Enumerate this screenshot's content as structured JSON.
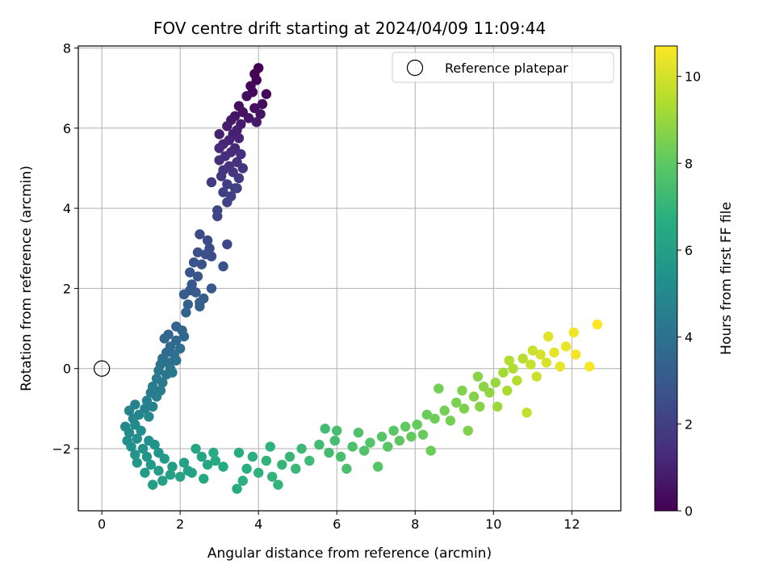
{
  "chart_data": {
    "type": "scatter",
    "title": "FOV centre drift starting at 2024/04/09 11:09:44",
    "xlabel": "Angular distance from reference (arcmin)",
    "ylabel": "Rotation from reference (arcmin)",
    "xlim": [
      -0.6,
      13.25
    ],
    "ylim": [
      -3.55,
      8.05
    ],
    "xticks": [
      0,
      2,
      4,
      6,
      8,
      10,
      12
    ],
    "yticks": [
      -2,
      0,
      2,
      4,
      6,
      8
    ],
    "grid": true,
    "legend": {
      "placement": "top-right",
      "entries": [
        "Reference platepar"
      ]
    },
    "reference_point": {
      "x": 0,
      "y": 0,
      "label": "Reference platepar"
    },
    "colorbar": {
      "label": "Hours from first FF file",
      "range": [
        0,
        10.7
      ],
      "ticks": [
        0,
        2,
        4,
        6,
        8,
        10
      ],
      "colormap": "viridis"
    },
    "series": [
      {
        "name": "",
        "points": [
          {
            "x": 4.0,
            "y": 7.5,
            "h": 0.0
          },
          {
            "x": 3.9,
            "y": 7.35,
            "h": 0.05
          },
          {
            "x": 3.95,
            "y": 7.2,
            "h": 0.1
          },
          {
            "x": 3.8,
            "y": 7.05,
            "h": 0.15
          },
          {
            "x": 3.85,
            "y": 6.9,
            "h": 0.2
          },
          {
            "x": 4.2,
            "y": 6.85,
            "h": 0.25
          },
          {
            "x": 3.7,
            "y": 6.8,
            "h": 0.3
          },
          {
            "x": 4.1,
            "y": 6.6,
            "h": 0.35
          },
          {
            "x": 3.5,
            "y": 6.55,
            "h": 0.4
          },
          {
            "x": 3.9,
            "y": 6.5,
            "h": 0.45
          },
          {
            "x": 3.6,
            "y": 6.4,
            "h": 0.5
          },
          {
            "x": 4.05,
            "y": 6.35,
            "h": 0.55
          },
          {
            "x": 3.4,
            "y": 6.3,
            "h": 0.6
          },
          {
            "x": 3.75,
            "y": 6.25,
            "h": 0.65
          },
          {
            "x": 3.3,
            "y": 6.2,
            "h": 0.7
          },
          {
            "x": 3.95,
            "y": 6.15,
            "h": 0.75
          },
          {
            "x": 3.55,
            "y": 6.1,
            "h": 0.8
          },
          {
            "x": 3.2,
            "y": 6.05,
            "h": 0.85
          },
          {
            "x": 3.45,
            "y": 5.95,
            "h": 0.9
          },
          {
            "x": 3.35,
            "y": 5.85,
            "h": 0.95
          },
          {
            "x": 3.0,
            "y": 5.85,
            "h": 1.0
          },
          {
            "x": 3.5,
            "y": 5.75,
            "h": 1.05
          },
          {
            "x": 3.25,
            "y": 5.7,
            "h": 1.1
          },
          {
            "x": 3.1,
            "y": 5.6,
            "h": 1.15
          },
          {
            "x": 3.4,
            "y": 5.5,
            "h": 1.2
          },
          {
            "x": 3.0,
            "y": 5.5,
            "h": 1.25
          },
          {
            "x": 3.3,
            "y": 5.4,
            "h": 1.3
          },
          {
            "x": 3.55,
            "y": 5.35,
            "h": 1.35
          },
          {
            "x": 3.15,
            "y": 5.3,
            "h": 1.4
          },
          {
            "x": 3.0,
            "y": 5.2,
            "h": 1.45
          },
          {
            "x": 3.45,
            "y": 5.15,
            "h": 1.5
          },
          {
            "x": 3.25,
            "y": 5.05,
            "h": 1.55
          },
          {
            "x": 3.6,
            "y": 5.0,
            "h": 1.6
          },
          {
            "x": 3.1,
            "y": 4.95,
            "h": 1.65
          },
          {
            "x": 3.35,
            "y": 4.9,
            "h": 1.7
          },
          {
            "x": 3.05,
            "y": 4.8,
            "h": 1.75
          },
          {
            "x": 3.5,
            "y": 4.75,
            "h": 1.8
          },
          {
            "x": 2.8,
            "y": 4.65,
            "h": 1.85
          },
          {
            "x": 3.2,
            "y": 4.6,
            "h": 1.9
          },
          {
            "x": 3.4,
            "y": 4.5,
            "h": 1.95
          },
          {
            "x": 3.1,
            "y": 4.4,
            "h": 2.0
          },
          {
            "x": 3.3,
            "y": 4.3,
            "h": 2.05
          },
          {
            "x": 3.45,
            "y": 4.5,
            "h": 2.1
          },
          {
            "x": 3.2,
            "y": 4.15,
            "h": 2.15
          },
          {
            "x": 2.95,
            "y": 3.95,
            "h": 2.2
          },
          {
            "x": 2.95,
            "y": 3.8,
            "h": 2.25
          },
          {
            "x": 3.2,
            "y": 3.1,
            "h": 2.3
          },
          {
            "x": 2.5,
            "y": 3.35,
            "h": 2.35
          },
          {
            "x": 2.7,
            "y": 3.2,
            "h": 2.4
          },
          {
            "x": 2.75,
            "y": 3.0,
            "h": 2.45
          },
          {
            "x": 2.8,
            "y": 2.8,
            "h": 2.5
          },
          {
            "x": 2.45,
            "y": 2.9,
            "h": 2.55
          },
          {
            "x": 2.65,
            "y": 2.85,
            "h": 2.6
          },
          {
            "x": 3.1,
            "y": 2.55,
            "h": 2.65
          },
          {
            "x": 2.35,
            "y": 2.65,
            "h": 2.7
          },
          {
            "x": 2.55,
            "y": 2.6,
            "h": 2.75
          },
          {
            "x": 2.25,
            "y": 2.4,
            "h": 2.8
          },
          {
            "x": 2.45,
            "y": 2.3,
            "h": 2.85
          },
          {
            "x": 2.3,
            "y": 2.1,
            "h": 2.9
          },
          {
            "x": 2.8,
            "y": 2.0,
            "h": 2.95
          },
          {
            "x": 2.25,
            "y": 1.95,
            "h": 3.0
          },
          {
            "x": 2.4,
            "y": 1.9,
            "h": 3.05
          },
          {
            "x": 2.1,
            "y": 1.85,
            "h": 3.1
          },
          {
            "x": 2.6,
            "y": 1.75,
            "h": 3.15
          },
          {
            "x": 2.5,
            "y": 1.65,
            "h": 3.2
          },
          {
            "x": 2.2,
            "y": 1.6,
            "h": 3.25
          },
          {
            "x": 2.5,
            "y": 1.55,
            "h": 3.3
          },
          {
            "x": 2.15,
            "y": 1.4,
            "h": 3.35
          },
          {
            "x": 1.9,
            "y": 1.05,
            "h": 3.4
          },
          {
            "x": 2.05,
            "y": 0.95,
            "h": 3.45
          },
          {
            "x": 1.7,
            "y": 0.85,
            "h": 3.5
          },
          {
            "x": 2.1,
            "y": 0.8,
            "h": 3.55
          },
          {
            "x": 1.9,
            "y": 0.7,
            "h": 3.6
          },
          {
            "x": 1.6,
            "y": 0.75,
            "h": 3.65
          },
          {
            "x": 1.75,
            "y": 0.55,
            "h": 3.7
          },
          {
            "x": 2.0,
            "y": 0.5,
            "h": 3.75
          },
          {
            "x": 1.65,
            "y": 0.4,
            "h": 3.8
          },
          {
            "x": 1.85,
            "y": 0.35,
            "h": 3.85
          },
          {
            "x": 1.55,
            "y": 0.25,
            "h": 3.9
          },
          {
            "x": 1.9,
            "y": 0.2,
            "h": 3.95
          },
          {
            "x": 1.7,
            "y": 0.15,
            "h": 4.0
          },
          {
            "x": 1.5,
            "y": 0.1,
            "h": 4.05
          },
          {
            "x": 1.75,
            "y": 0.0,
            "h": 4.1
          },
          {
            "x": 1.45,
            "y": -0.05,
            "h": 4.15
          },
          {
            "x": 1.65,
            "y": -0.15,
            "h": 4.2
          },
          {
            "x": 1.8,
            "y": -0.1,
            "h": 4.25
          },
          {
            "x": 1.4,
            "y": -0.25,
            "h": 4.3
          },
          {
            "x": 1.55,
            "y": -0.35,
            "h": 4.35
          },
          {
            "x": 1.3,
            "y": -0.45,
            "h": 4.4
          },
          {
            "x": 1.5,
            "y": -0.55,
            "h": 4.45
          },
          {
            "x": 1.25,
            "y": -0.6,
            "h": 4.5
          },
          {
            "x": 1.4,
            "y": -0.7,
            "h": 4.55
          },
          {
            "x": 1.15,
            "y": -0.8,
            "h": 4.6
          },
          {
            "x": 1.3,
            "y": -0.95,
            "h": 4.65
          },
          {
            "x": 0.85,
            "y": -0.9,
            "h": 4.7
          },
          {
            "x": 1.1,
            "y": -1.0,
            "h": 4.75
          },
          {
            "x": 0.7,
            "y": -1.05,
            "h": 4.8
          },
          {
            "x": 0.95,
            "y": -1.15,
            "h": 4.85
          },
          {
            "x": 0.8,
            "y": -1.25,
            "h": 4.9
          },
          {
            "x": 1.2,
            "y": -1.2,
            "h": 4.95
          },
          {
            "x": 0.6,
            "y": -1.45,
            "h": 5.0
          },
          {
            "x": 0.85,
            "y": -1.4,
            "h": 5.05
          },
          {
            "x": 0.7,
            "y": -1.6,
            "h": 5.1
          },
          {
            "x": 1.0,
            "y": -1.55,
            "h": 5.15
          },
          {
            "x": 0.65,
            "y": -1.8,
            "h": 5.2
          },
          {
            "x": 0.9,
            "y": -1.75,
            "h": 5.25
          },
          {
            "x": 1.2,
            "y": -1.8,
            "h": 5.3
          },
          {
            "x": 0.75,
            "y": -1.95,
            "h": 5.35
          },
          {
            "x": 1.05,
            "y": -2.0,
            "h": 5.4
          },
          {
            "x": 1.35,
            "y": -1.9,
            "h": 5.45
          },
          {
            "x": 0.85,
            "y": -2.15,
            "h": 5.5
          },
          {
            "x": 1.15,
            "y": -2.2,
            "h": 5.55
          },
          {
            "x": 1.45,
            "y": -2.1,
            "h": 5.6
          },
          {
            "x": 0.9,
            "y": -2.35,
            "h": 5.65
          },
          {
            "x": 1.25,
            "y": -2.4,
            "h": 5.7
          },
          {
            "x": 1.6,
            "y": -2.25,
            "h": 5.75
          },
          {
            "x": 1.1,
            "y": -2.6,
            "h": 5.8
          },
          {
            "x": 1.45,
            "y": -2.55,
            "h": 5.85
          },
          {
            "x": 1.8,
            "y": -2.45,
            "h": 5.9
          },
          {
            "x": 1.3,
            "y": -2.9,
            "h": 5.95
          },
          {
            "x": 1.55,
            "y": -2.8,
            "h": 6.0
          },
          {
            "x": 1.75,
            "y": -2.65,
            "h": 6.05
          },
          {
            "x": 2.1,
            "y": -2.35,
            "h": 6.1
          },
          {
            "x": 2.3,
            "y": -2.6,
            "h": 6.15
          },
          {
            "x": 2.0,
            "y": -2.7,
            "h": 6.2
          },
          {
            "x": 2.55,
            "y": -2.2,
            "h": 6.25
          },
          {
            "x": 2.4,
            "y": -2.0,
            "h": 6.3
          },
          {
            "x": 2.7,
            "y": -2.4,
            "h": 6.35
          },
          {
            "x": 2.6,
            "y": -2.75,
            "h": 6.4
          },
          {
            "x": 2.9,
            "y": -2.3,
            "h": 6.45
          },
          {
            "x": 3.1,
            "y": -2.45,
            "h": 6.5
          },
          {
            "x": 2.85,
            "y": -2.1,
            "h": 6.55
          },
          {
            "x": 3.45,
            "y": -3.0,
            "h": 6.6
          },
          {
            "x": 3.5,
            "y": -2.1,
            "h": 6.65
          },
          {
            "x": 3.7,
            "y": -2.5,
            "h": 6.7
          },
          {
            "x": 3.85,
            "y": -2.2,
            "h": 6.75
          },
          {
            "x": 3.6,
            "y": -2.8,
            "h": 6.8
          },
          {
            "x": 4.0,
            "y": -2.6,
            "h": 6.85
          },
          {
            "x": 4.2,
            "y": -2.3,
            "h": 6.9
          },
          {
            "x": 4.35,
            "y": -2.7,
            "h": 6.95
          },
          {
            "x": 4.5,
            "y": -2.9,
            "h": 7.0
          },
          {
            "x": 4.6,
            "y": -2.4,
            "h": 7.05
          },
          {
            "x": 4.8,
            "y": -2.2,
            "h": 7.1
          },
          {
            "x": 4.95,
            "y": -2.5,
            "h": 7.15
          },
          {
            "x": 5.1,
            "y": -2.0,
            "h": 7.2
          },
          {
            "x": 5.3,
            "y": -2.3,
            "h": 7.25
          },
          {
            "x": 5.55,
            "y": -1.9,
            "h": 7.3
          },
          {
            "x": 5.7,
            "y": -1.5,
            "h": 7.35
          },
          {
            "x": 5.8,
            "y": -2.1,
            "h": 7.4
          },
          {
            "x": 5.95,
            "y": -1.8,
            "h": 7.45
          },
          {
            "x": 6.1,
            "y": -2.2,
            "h": 7.5
          },
          {
            "x": 6.25,
            "y": -2.5,
            "h": 7.55
          },
          {
            "x": 6.4,
            "y": -1.95,
            "h": 7.6
          },
          {
            "x": 6.55,
            "y": -1.6,
            "h": 7.65
          },
          {
            "x": 6.7,
            "y": -2.05,
            "h": 7.7
          },
          {
            "x": 6.85,
            "y": -1.85,
            "h": 7.75
          },
          {
            "x": 7.05,
            "y": -2.45,
            "h": 7.8
          },
          {
            "x": 7.15,
            "y": -1.7,
            "h": 7.85
          },
          {
            "x": 7.3,
            "y": -1.95,
            "h": 7.9
          },
          {
            "x": 7.45,
            "y": -1.55,
            "h": 7.95
          },
          {
            "x": 7.6,
            "y": -1.8,
            "h": 8.0
          },
          {
            "x": 7.75,
            "y": -1.45,
            "h": 8.05
          },
          {
            "x": 7.9,
            "y": -1.7,
            "h": 8.1
          },
          {
            "x": 8.05,
            "y": -1.4,
            "h": 8.15
          },
          {
            "x": 8.2,
            "y": -1.65,
            "h": 8.2
          },
          {
            "x": 8.4,
            "y": -2.05,
            "h": 8.25
          },
          {
            "x": 8.5,
            "y": -1.25,
            "h": 8.3
          },
          {
            "x": 8.6,
            "y": -0.5,
            "h": 8.35
          },
          {
            "x": 8.75,
            "y": -1.05,
            "h": 8.4
          },
          {
            "x": 8.9,
            "y": -1.3,
            "h": 8.45
          },
          {
            "x": 9.05,
            "y": -0.85,
            "h": 8.5
          },
          {
            "x": 9.25,
            "y": -1.0,
            "h": 8.55
          },
          {
            "x": 9.35,
            "y": -1.55,
            "h": 8.6
          },
          {
            "x": 9.5,
            "y": -0.7,
            "h": 8.65
          },
          {
            "x": 9.65,
            "y": -0.95,
            "h": 8.7
          },
          {
            "x": 9.75,
            "y": -0.45,
            "h": 8.8
          },
          {
            "x": 9.9,
            "y": -0.6,
            "h": 8.9
          },
          {
            "x": 10.05,
            "y": -0.35,
            "h": 9.0
          },
          {
            "x": 10.1,
            "y": -0.95,
            "h": 9.1
          },
          {
            "x": 10.25,
            "y": -0.1,
            "h": 9.2
          },
          {
            "x": 10.35,
            "y": -0.55,
            "h": 9.3
          },
          {
            "x": 10.5,
            "y": 0.0,
            "h": 9.4
          },
          {
            "x": 10.6,
            "y": -0.3,
            "h": 9.5
          },
          {
            "x": 10.75,
            "y": 0.25,
            "h": 9.6
          },
          {
            "x": 10.85,
            "y": -1.1,
            "h": 9.7
          },
          {
            "x": 10.95,
            "y": 0.1,
            "h": 9.8
          },
          {
            "x": 11.1,
            "y": -0.2,
            "h": 9.9
          },
          {
            "x": 11.2,
            "y": 0.35,
            "h": 10.0
          },
          {
            "x": 11.35,
            "y": 0.15,
            "h": 10.1
          },
          {
            "x": 11.4,
            "y": 0.8,
            "h": 10.2
          },
          {
            "x": 11.55,
            "y": 0.4,
            "h": 10.3
          },
          {
            "x": 11.7,
            "y": 0.05,
            "h": 10.35
          },
          {
            "x": 11.85,
            "y": 0.55,
            "h": 10.4
          },
          {
            "x": 12.05,
            "y": 0.9,
            "h": 10.5
          },
          {
            "x": 12.1,
            "y": 0.35,
            "h": 10.55
          },
          {
            "x": 12.45,
            "y": 0.05,
            "h": 10.6
          },
          {
            "x": 12.65,
            "y": 1.1,
            "h": 10.7
          },
          {
            "x": 10.4,
            "y": 0.2,
            "h": 9.45
          },
          {
            "x": 9.6,
            "y": -0.2,
            "h": 8.75
          },
          {
            "x": 11.0,
            "y": 0.45,
            "h": 9.85
          },
          {
            "x": 9.2,
            "y": -0.55,
            "h": 8.6
          },
          {
            "x": 8.3,
            "y": -1.15,
            "h": 8.2
          },
          {
            "x": 6.0,
            "y": -1.55,
            "h": 7.45
          },
          {
            "x": 4.3,
            "y": -1.95,
            "h": 6.85
          },
          {
            "x": 2.2,
            "y": -2.55,
            "h": 6.15
          }
        ]
      }
    ]
  }
}
